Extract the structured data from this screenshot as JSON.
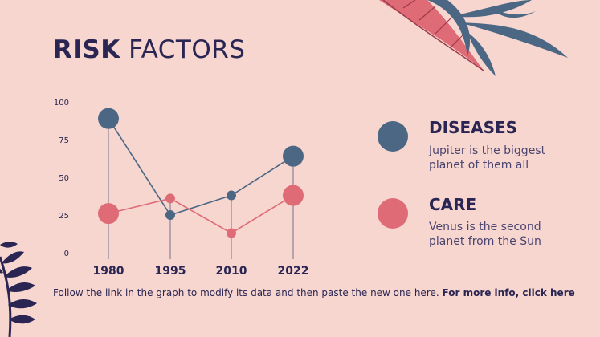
{
  "title": {
    "bold": "RISK",
    "light": "FACTORS"
  },
  "legend": [
    {
      "heading": "DISEASES",
      "desc_line1": "Jupiter is the biggest",
      "desc_line2": "planet of them all",
      "color": "#4b6784"
    },
    {
      "heading": "CARE",
      "desc_line1": "Venus is the second",
      "desc_line2": "planet from the Sun",
      "color": "#de6b75"
    }
  ],
  "footer": {
    "text": "Follow the link in the graph to modify its data and then paste the new one here.",
    "link": "For more info, click here"
  },
  "colors": {
    "background": "#f6d6cf",
    "text": "#2b2553",
    "leaf_pink": "#de6b75",
    "leaf_blue": "#4b6784",
    "leaf_navy": "#2b2553"
  },
  "icons": [
    "leaf-branch-decoration-top",
    "leaf-branch-decoration-bottom-left"
  ],
  "chart_data": {
    "type": "line",
    "categories": [
      "1980",
      "1995",
      "2010",
      "2022"
    ],
    "y_ticks": [
      "100",
      "75",
      "50",
      "25",
      "0"
    ],
    "ylim": [
      0,
      100
    ],
    "grid": false,
    "series": [
      {
        "name": "DISEASES",
        "values": [
          89,
          25,
          38,
          64
        ],
        "color": "#4b6784"
      },
      {
        "name": "CARE",
        "values": [
          26,
          36,
          13,
          38
        ],
        "color": "#de6b75"
      }
    ]
  }
}
